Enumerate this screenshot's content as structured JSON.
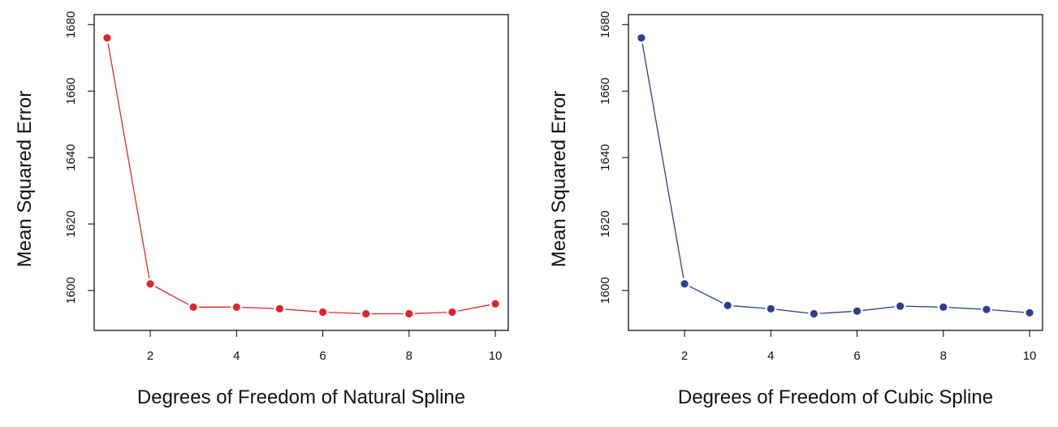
{
  "chart_data": [
    {
      "type": "line",
      "color": "#e0262b",
      "x": [
        1,
        2,
        3,
        4,
        5,
        6,
        7,
        8,
        9,
        10
      ],
      "values": [
        1676,
        1602,
        1595,
        1595,
        1594.5,
        1593.5,
        1593,
        1593,
        1593.5,
        1596
      ],
      "xlabel": "Degrees of Freedom of Natural Spline",
      "ylabel": "Mean Squared Error",
      "xticks": [
        2,
        4,
        6,
        8,
        10
      ],
      "yticks": [
        1600,
        1620,
        1640,
        1660,
        1680
      ],
      "xlim": [
        0.7,
        10.3
      ],
      "ylim": [
        1588,
        1683
      ]
    },
    {
      "type": "line",
      "color": "#2f3f8f",
      "x": [
        1,
        2,
        3,
        4,
        5,
        6,
        7,
        8,
        9,
        10
      ],
      "values": [
        1676,
        1602,
        1595.5,
        1594.5,
        1593,
        1593.8,
        1595.3,
        1595,
        1594.3,
        1593.3
      ],
      "xlabel": "Degrees of Freedom of Cubic Spline",
      "ylabel": "Mean Squared Error",
      "xticks": [
        2,
        4,
        6,
        8,
        10
      ],
      "yticks": [
        1600,
        1620,
        1640,
        1660,
        1680
      ],
      "xlim": [
        0.7,
        10.3
      ],
      "ylim": [
        1588,
        1683
      ]
    }
  ]
}
